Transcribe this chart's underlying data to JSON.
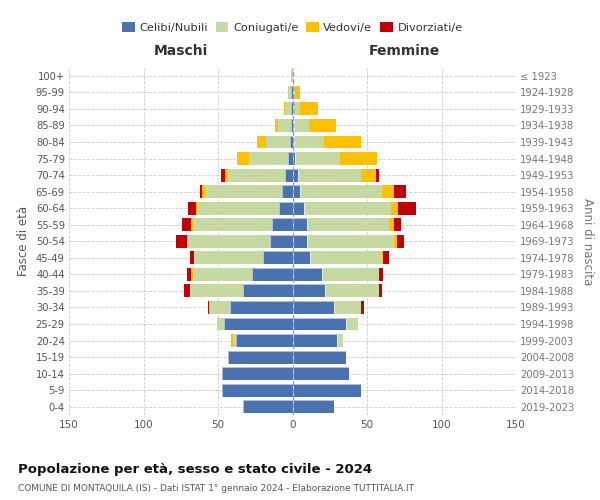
{
  "age_groups": [
    "0-4",
    "5-9",
    "10-14",
    "15-19",
    "20-24",
    "25-29",
    "30-34",
    "35-39",
    "40-44",
    "45-49",
    "50-54",
    "55-59",
    "60-64",
    "65-69",
    "70-74",
    "75-79",
    "80-84",
    "85-89",
    "90-94",
    "95-99",
    "100+"
  ],
  "birth_years": [
    "2019-2023",
    "2014-2018",
    "2009-2013",
    "2004-2008",
    "1999-2003",
    "1994-1998",
    "1989-1993",
    "1984-1988",
    "1979-1983",
    "1974-1978",
    "1969-1973",
    "1964-1968",
    "1959-1963",
    "1954-1958",
    "1949-1953",
    "1944-1948",
    "1939-1943",
    "1934-1938",
    "1929-1933",
    "1924-1928",
    "≤ 1923"
  ],
  "maschi_celibi": [
    33,
    47,
    47,
    43,
    38,
    46,
    42,
    33,
    27,
    20,
    15,
    14,
    9,
    7,
    5,
    3,
    2,
    1,
    1,
    1,
    0
  ],
  "maschi_coniugati": [
    0,
    0,
    0,
    0,
    2,
    5,
    14,
    36,
    40,
    46,
    55,
    53,
    55,
    52,
    38,
    26,
    16,
    9,
    4,
    2,
    1
  ],
  "maschi_vedovi": [
    0,
    0,
    0,
    0,
    1,
    0,
    0,
    0,
    1,
    0,
    1,
    1,
    1,
    2,
    2,
    8,
    6,
    2,
    1,
    0,
    0
  ],
  "maschi_divorziati": [
    0,
    0,
    0,
    0,
    0,
    0,
    1,
    4,
    3,
    3,
    7,
    6,
    5,
    1,
    3,
    0,
    0,
    0,
    0,
    0,
    0
  ],
  "femmine_nubili": [
    28,
    46,
    38,
    36,
    30,
    36,
    28,
    22,
    20,
    12,
    10,
    10,
    8,
    5,
    4,
    2,
    1,
    1,
    0,
    0,
    0
  ],
  "femmine_coniugate": [
    0,
    0,
    0,
    0,
    4,
    8,
    18,
    36,
    38,
    48,
    58,
    55,
    58,
    55,
    42,
    30,
    20,
    10,
    5,
    2,
    0
  ],
  "femmine_vedove": [
    0,
    0,
    0,
    0,
    0,
    0,
    0,
    0,
    0,
    1,
    2,
    3,
    5,
    8,
    10,
    25,
    25,
    18,
    12,
    3,
    0
  ],
  "femmine_divorziate": [
    0,
    0,
    0,
    0,
    0,
    0,
    2,
    2,
    3,
    4,
    5,
    5,
    12,
    8,
    2,
    0,
    0,
    0,
    0,
    0,
    0
  ],
  "colors": {
    "celibi_nubili": "#4a72b0",
    "coniugati": "#c5d9a0",
    "vedovi": "#ffc000",
    "divorziati": "#c0000b"
  },
  "xlim": 150,
  "title": "Popolazione per età, sesso e stato civile - 2024",
  "subtitle": "COMUNE DI MONTAQUILA (IS) - Dati ISTAT 1° gennaio 2024 - Elaborazione TUTTITALIA.IT",
  "label_maschi": "Maschi",
  "label_femmine": "Femmine",
  "ylabel_left": "Fasce di età",
  "ylabel_right": "Anni di nascita",
  "legend_labels": [
    "Celibi/Nubili",
    "Coniugati/e",
    "Vedovi/e",
    "Divorziati/e"
  ]
}
